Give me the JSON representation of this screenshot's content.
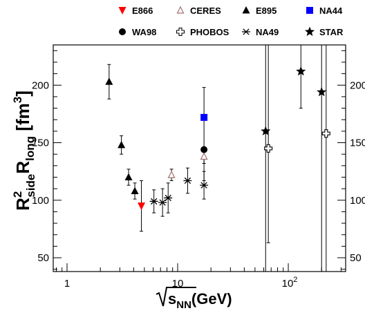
{
  "chart_data": {
    "type": "scatter",
    "title": "",
    "xlabel": {
      "root": "√",
      "main": "s",
      "sub": "NN",
      "unit": "(GeV)"
    },
    "ylabel": {
      "r1": "R",
      "sup": "2",
      "sub1": "side",
      "r2": "R",
      "sub2": "long",
      "unit_open": " [fm",
      "unit_sup": "3",
      "unit_close": "]"
    },
    "x_scale": "log",
    "xlim": [
      0.75,
      330
    ],
    "ylim": [
      38,
      235
    ],
    "x_ticks": [
      {
        "value": 1,
        "label": "1"
      },
      {
        "value": 10,
        "label": "10"
      },
      {
        "value": 100,
        "label": "10",
        "sup": "2"
      }
    ],
    "y_ticks": [
      50,
      100,
      150,
      200
    ],
    "grid": false,
    "legend": {
      "placement": "top"
    },
    "series": [
      {
        "name": "E866",
        "marker": "triangle-down",
        "color": "#ff0000",
        "points": [
          {
            "x": 4.7,
            "y": 95,
            "err_low": 22,
            "err_high": 22
          }
        ]
      },
      {
        "name": "CERES",
        "marker": "triangle-open",
        "color": "#a07070",
        "points": [
          {
            "x": 8.8,
            "y": 122,
            "err_low": 5,
            "err_high": 5
          },
          {
            "x": 17.3,
            "y": 138,
            "err_low": 6,
            "err_high": 6
          }
        ]
      },
      {
        "name": "E895",
        "marker": "triangle",
        "color": "#000000",
        "points": [
          {
            "x": 2.4,
            "y": 203,
            "err_low": 15,
            "err_high": 15
          },
          {
            "x": 3.1,
            "y": 148,
            "err_low": 8,
            "err_high": 8
          },
          {
            "x": 3.6,
            "y": 120,
            "err_low": 7,
            "err_high": 7
          },
          {
            "x": 4.1,
            "y": 108,
            "err_low": 7,
            "err_high": 7
          }
        ]
      },
      {
        "name": "NA44",
        "marker": "square",
        "color": "#0000ff",
        "points": [
          {
            "x": 17.3,
            "y": 172,
            "err_low": 0,
            "err_high": 0
          }
        ]
      },
      {
        "name": "WA98",
        "marker": "circle",
        "color": "#000000",
        "points": [
          {
            "x": 17.3,
            "y": 144,
            "err_low": 27,
            "err_high": 54
          }
        ]
      },
      {
        "name": "PHOBOS",
        "marker": "cross-open",
        "color": "#000000",
        "points": [
          {
            "x": 66,
            "y": 145,
            "err_low": 82,
            "err_high": 90
          },
          {
            "x": 220,
            "y": 158,
            "err_low": 130,
            "err_high": 130
          }
        ]
      },
      {
        "name": "NA49",
        "marker": "asterisk",
        "color": "#000000",
        "points": [
          {
            "x": 6.1,
            "y": 99,
            "err_low": 10,
            "err_high": 10
          },
          {
            "x": 7.3,
            "y": 98,
            "err_low": 12,
            "err_high": 12
          },
          {
            "x": 8.2,
            "y": 102,
            "err_low": 13,
            "err_high": 13
          },
          {
            "x": 12.3,
            "y": 117,
            "err_low": 11,
            "err_high": 11
          },
          {
            "x": 17.3,
            "y": 113,
            "err_low": 12,
            "err_high": 12
          }
        ]
      },
      {
        "name": "STAR",
        "marker": "star",
        "color": "#000000",
        "points": [
          {
            "x": 62.4,
            "y": 160,
            "err_low": 125,
            "err_high": 80
          },
          {
            "x": 130,
            "y": 212,
            "err_low": 32,
            "err_high": 30
          },
          {
            "x": 200,
            "y": 194,
            "err_low": 175,
            "err_high": 60
          }
        ]
      }
    ]
  }
}
